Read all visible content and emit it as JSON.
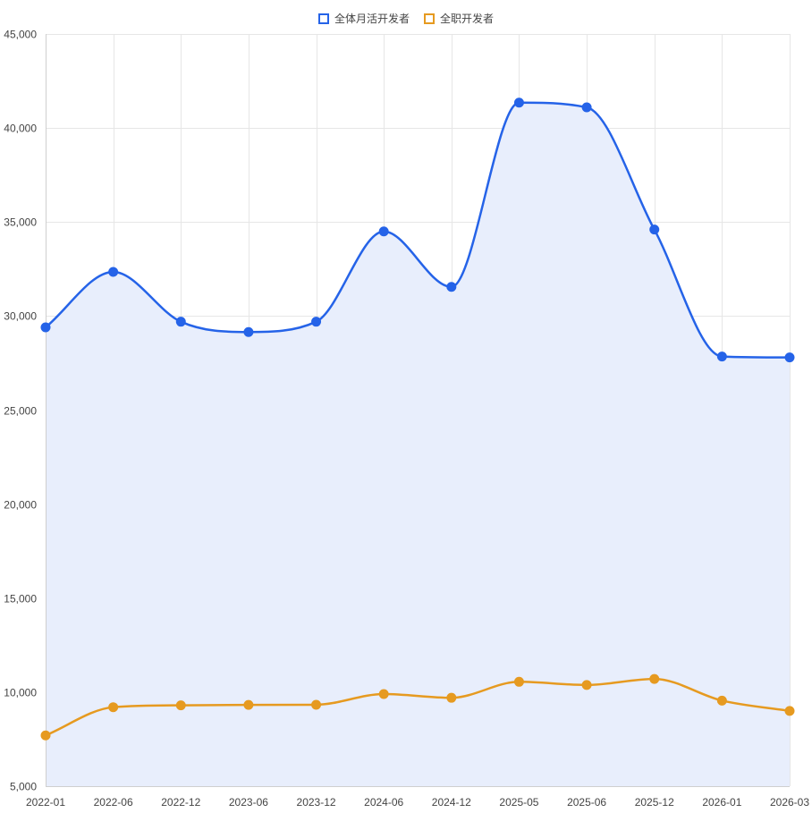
{
  "chart_data": {
    "type": "line",
    "title": "",
    "xlabel": "",
    "ylabel": "",
    "categories": [
      "2022-01",
      "2022-06",
      "2022-12",
      "2023-06",
      "2023-12",
      "2024-06",
      "2024-12",
      "2025-05",
      "2025-06",
      "2025-12",
      "2026-01",
      "2026-03"
    ],
    "series": [
      {
        "name": "全体月活开发者",
        "color": "#2563e8",
        "fill": "#e8eefc",
        "filled": true,
        "values": [
          29400,
          32350,
          29700,
          29150,
          29700,
          34500,
          31550,
          41350,
          41100,
          34600,
          27850,
          27800
        ]
      },
      {
        "name": "全职开发者",
        "color": "#e69a20",
        "filled": false,
        "values": [
          7700,
          9200,
          9300,
          9320,
          9330,
          9900,
          9700,
          10550,
          10380,
          10700,
          9550,
          9000
        ]
      }
    ],
    "ylim": [
      5000,
      45000
    ],
    "yticks": [
      5000,
      10000,
      15000,
      20000,
      25000,
      30000,
      35000,
      40000,
      45000
    ],
    "grid": true,
    "legend": "top-center"
  }
}
